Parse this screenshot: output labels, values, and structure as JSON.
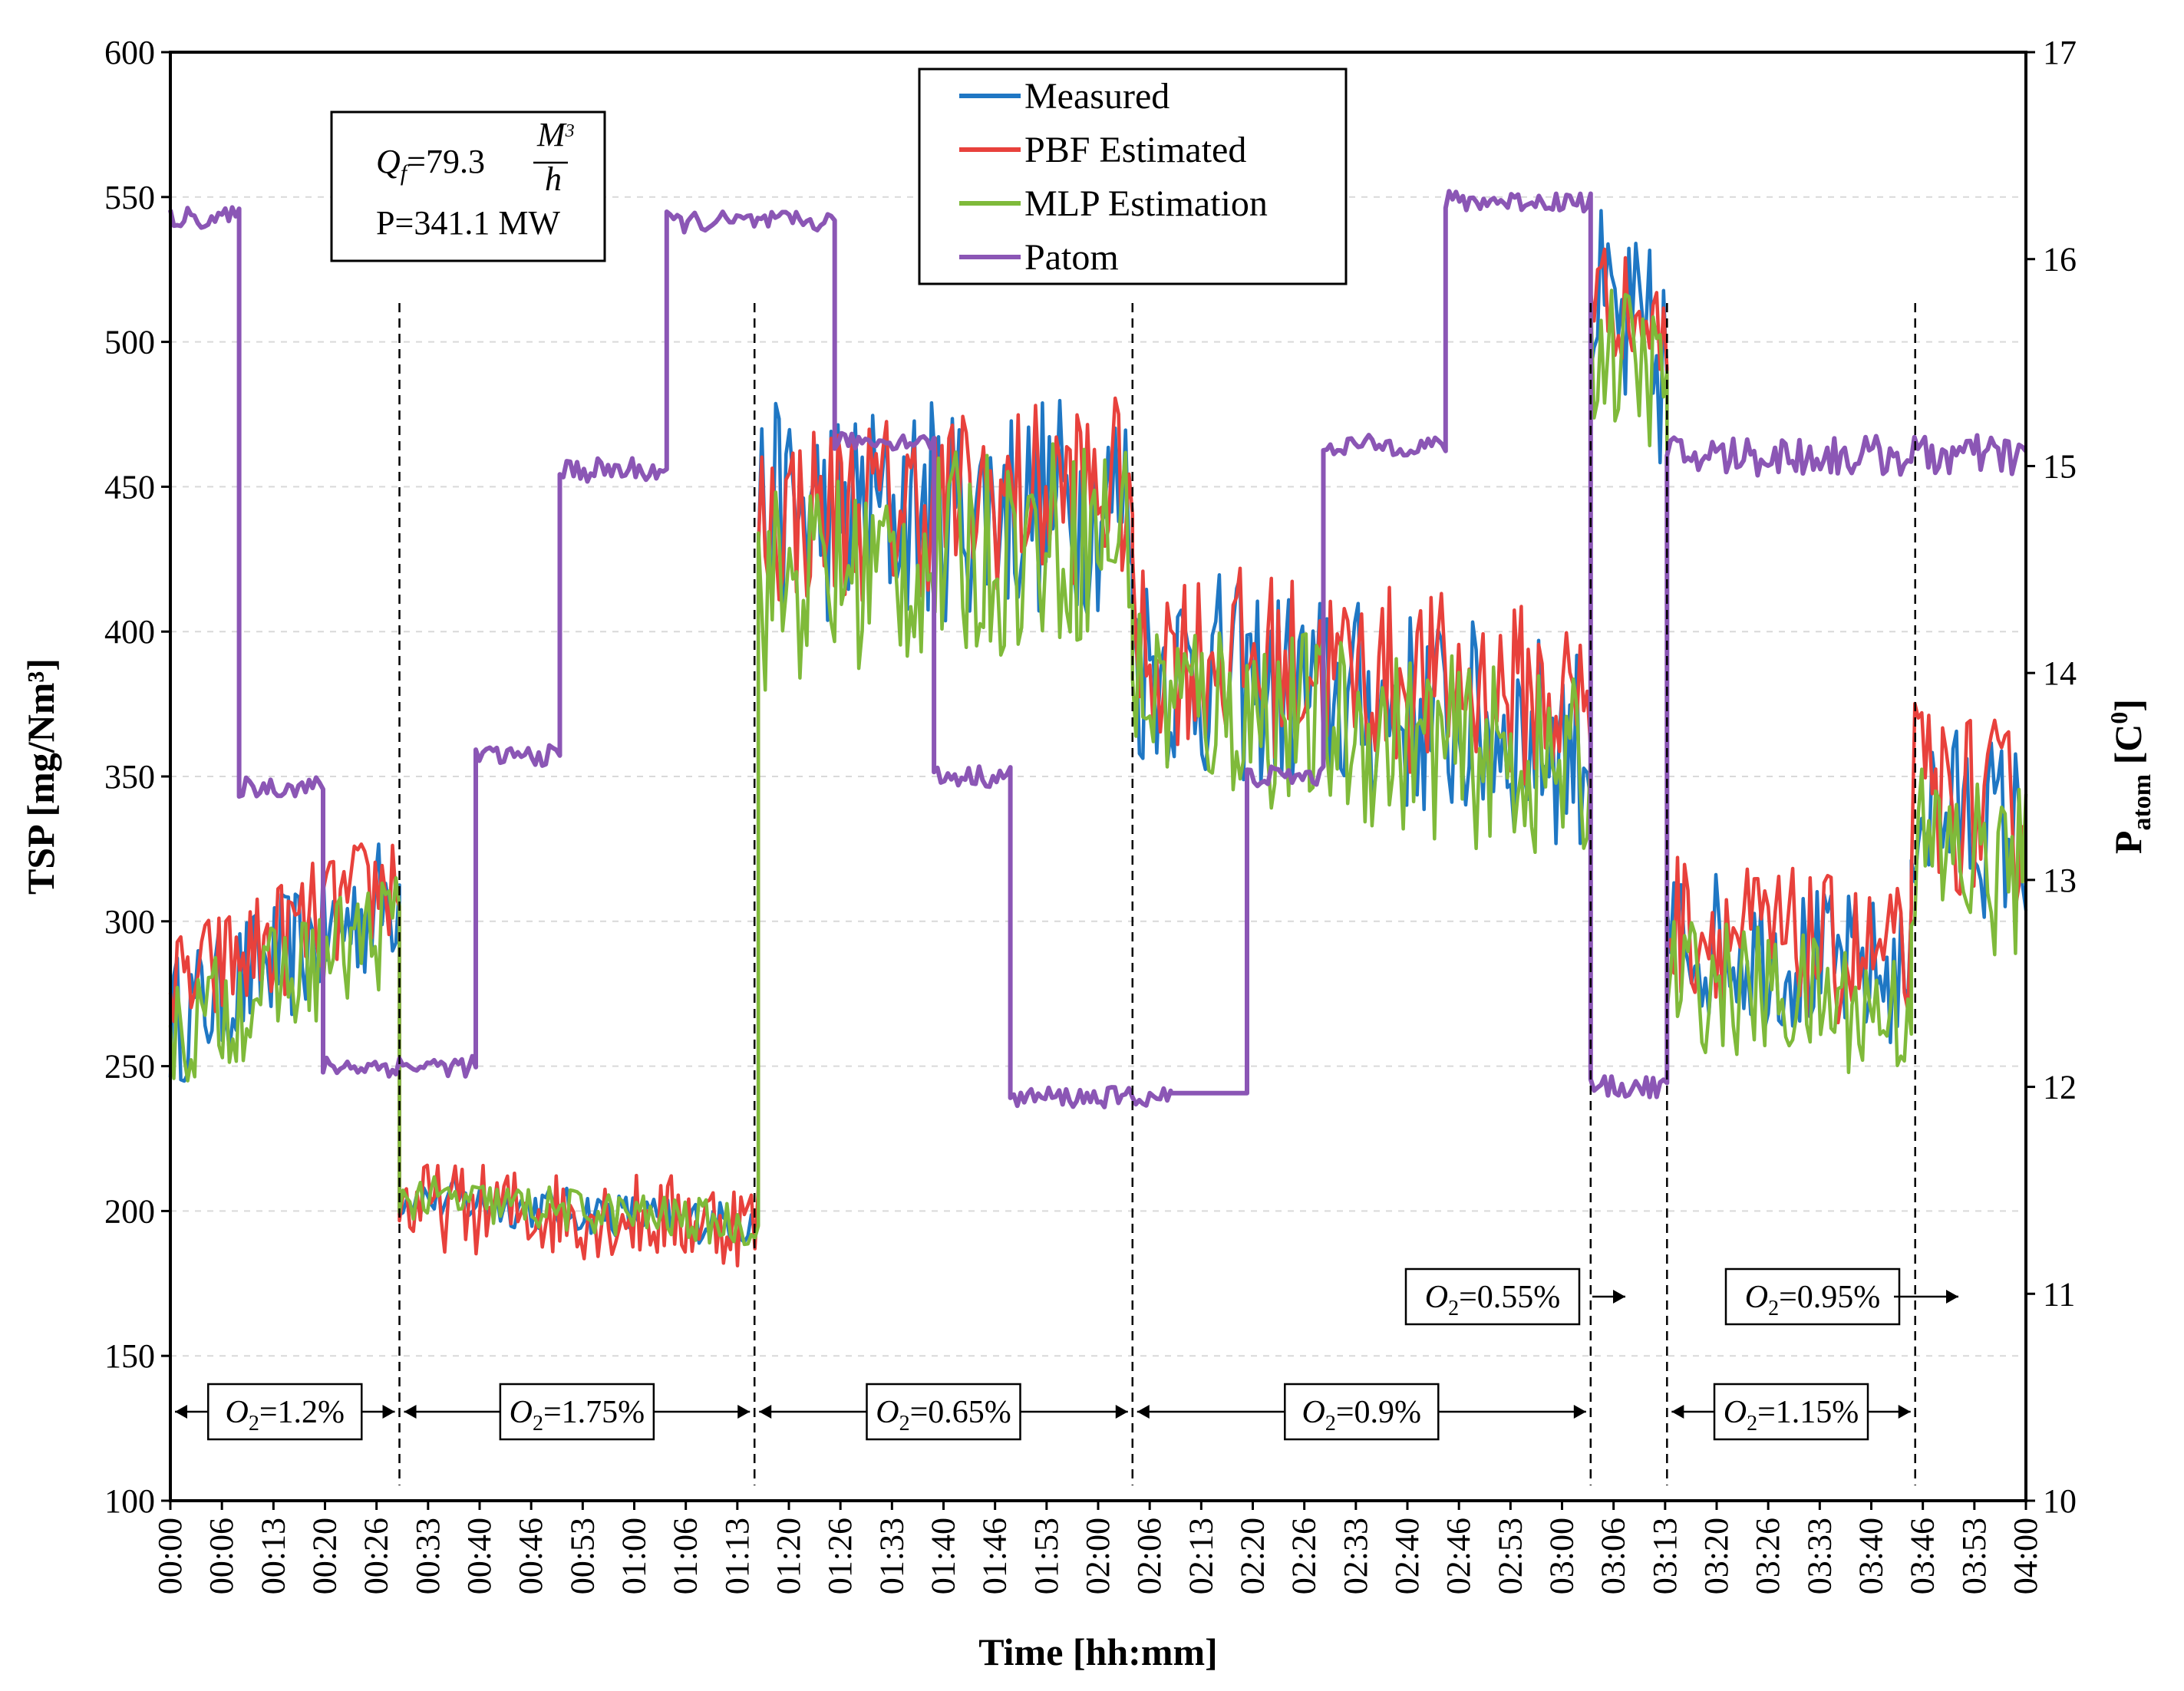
{
  "chart_data": {
    "type": "line",
    "xlabel": "Time [hh:mm]",
    "ylabel": "TSP [mg/Nm³]",
    "y2label_main": "P",
    "y2label_sub": "atom",
    "y2label_unit": " [C",
    "y2label_unit_sup": "0",
    "y2label_end": "]",
    "xlim": [
      0,
      243
    ],
    "ylim": [
      100,
      600
    ],
    "y2lim": [
      10,
      17
    ],
    "yticks": [
      100,
      150,
      200,
      250,
      300,
      350,
      400,
      450,
      500,
      550,
      600
    ],
    "y2ticks": [
      10,
      11,
      12,
      13,
      14,
      15,
      16,
      17
    ],
    "xtick_labels": [
      "00:00",
      "00:06",
      "00:13",
      "00:20",
      "00:26",
      "00:33",
      "00:40",
      "00:46",
      "00:53",
      "01:00",
      "01:06",
      "01:13",
      "01:20",
      "01:26",
      "01:33",
      "01:40",
      "01:46",
      "01:53",
      "02:00",
      "02:06",
      "02:13",
      "02:20",
      "02:26",
      "02:33",
      "02:40",
      "02:46",
      "02:53",
      "03:00",
      "03:06",
      "03:13",
      "03:20",
      "03:26",
      "03:33",
      "03:40",
      "03:46",
      "03:53",
      "04:00"
    ],
    "series": [
      {
        "name": "Measured",
        "color": "#1f77c4",
        "axis": "left",
        "segments": [
          {
            "x": [
              0,
              30
            ],
            "level": [
              265,
              310
            ],
            "noise": 18
          },
          {
            "x": [
              30,
              77
            ],
            "level": [
              205,
              195
            ],
            "noise": 6
          },
          {
            "x": [
              77,
              126
            ],
            "level": [
              440,
              445
            ],
            "noise": 30
          },
          {
            "x": [
              126,
              186
            ],
            "level": [
              390,
              360
            ],
            "noise": 28
          },
          {
            "x": [
              186,
              196
            ],
            "level": [
              510,
              490
            ],
            "noise": 30
          },
          {
            "x": [
              196,
              228
            ],
            "level": [
              295,
              280
            ],
            "noise": 20
          },
          {
            "x": [
              228,
              243
            ],
            "level": [
              340,
              330
            ],
            "noise": 25
          }
        ]
      },
      {
        "name": "PBF Estimated",
        "color": "#e8413c",
        "axis": "left",
        "segments": [
          {
            "x": [
              0,
              30
            ],
            "level": [
              275,
              315
            ],
            "noise": 16
          },
          {
            "x": [
              30,
              77
            ],
            "level": [
              202,
              196
            ],
            "noise": 12
          },
          {
            "x": [
              77,
              126
            ],
            "level": [
              440,
              450
            ],
            "noise": 25
          },
          {
            "x": [
              126,
              186
            ],
            "level": [
              395,
              375
            ],
            "noise": 25
          },
          {
            "x": [
              186,
              196
            ],
            "level": [
              520,
              500
            ],
            "noise": 15
          },
          {
            "x": [
              196,
              228
            ],
            "level": [
              300,
              285
            ],
            "noise": 20
          },
          {
            "x": [
              228,
              243
            ],
            "level": [
              345,
              335
            ],
            "noise": 25
          }
        ]
      },
      {
        "name": "MLP Estimation",
        "color": "#7fba3a",
        "axis": "left",
        "segments": [
          {
            "x": [
              0,
              30
            ],
            "level": [
              260,
              300
            ],
            "noise": 16
          },
          {
            "x": [
              30,
              77
            ],
            "level": [
              205,
              195
            ],
            "noise": 6
          },
          {
            "x": [
              77,
              126
            ],
            "level": [
              415,
              435
            ],
            "noise": 28
          },
          {
            "x": [
              126,
              186
            ],
            "level": [
              380,
              350
            ],
            "noise": 25
          },
          {
            "x": [
              186,
              196
            ],
            "level": [
              500,
              485
            ],
            "noise": 20
          },
          {
            "x": [
              196,
              228
            ],
            "level": [
              280,
              268
            ],
            "noise": 18
          },
          {
            "x": [
              228,
              243
            ],
            "level": [
              325,
              315
            ],
            "noise": 25
          }
        ]
      },
      {
        "name": "Patom",
        "color": "#8b56b5",
        "axis": "right",
        "steps": [
          {
            "x": [
              0,
              9
            ],
            "y": 16.2,
            "noise": 0.05
          },
          {
            "x": [
              9,
              20
            ],
            "y": 13.45,
            "noise": 0.05
          },
          {
            "x": [
              20,
              40
            ],
            "y": 12.1,
            "noise": 0.05
          },
          {
            "x": [
              40,
              51
            ],
            "y": 13.6,
            "noise": 0.05
          },
          {
            "x": [
              51,
              65
            ],
            "y": 14.98,
            "noise": 0.06
          },
          {
            "x": [
              65,
              87
            ],
            "y": 16.18,
            "noise": 0.05
          },
          {
            "x": [
              87,
              100
            ],
            "y": 15.12,
            "noise": 0.04
          },
          {
            "x": [
              100,
              110
            ],
            "y": 13.5,
            "noise": 0.05
          },
          {
            "x": [
              110,
              131
            ],
            "y": 11.95,
            "noise": 0.05
          },
          {
            "x": [
              131,
              141
            ],
            "y": 11.97,
            "noise": 0.0
          },
          {
            "x": [
              141,
              151
            ],
            "y": 13.5,
            "noise": 0.05
          },
          {
            "x": [
              151,
              167
            ],
            "y": 15.1,
            "noise": 0.05
          },
          {
            "x": [
              167,
              186
            ],
            "y": 16.28,
            "noise": 0.05
          },
          {
            "x": [
              186,
              196
            ],
            "y": 12.0,
            "noise": 0.05
          },
          {
            "x": [
              196,
              243
            ],
            "y": 15.05,
            "noise": 0.1
          }
        ]
      }
    ],
    "vlines": [
      30,
      76.5,
      126,
      186,
      196,
      228.5
    ],
    "o2_regions": [
      {
        "label_main": "O",
        "label_sub": "2",
        "label_rest": "=1.2%",
        "x_start": 0,
        "x_end": 30
      },
      {
        "label_main": "O",
        "label_sub": "2",
        "label_rest": "=1.75%",
        "x_start": 30,
        "x_end": 76.5
      },
      {
        "label_main": "O",
        "label_sub": "2",
        "label_rest": "=0.65%",
        "x_start": 76.5,
        "x_end": 126
      },
      {
        "label_main": "O",
        "label_sub": "2",
        "label_rest": "=0.9%",
        "x_start": 126,
        "x_end": 186
      },
      {
        "label_main": "O",
        "label_sub": "2",
        "label_rest": "=1.15%",
        "x_start": 196,
        "x_end": 228.5
      }
    ],
    "o2_arrows": [
      {
        "label_main": "O",
        "label_sub": "2",
        "label_rest": "=0.55%"
      },
      {
        "label_main": "O",
        "label_sub": "2",
        "label_rest": "=0.95%"
      }
    ],
    "annotation": {
      "line1_var": "Q",
      "line1_sub": "f",
      "line1_eq": "=79.3",
      "line1_num": "M",
      "line1_num_sup": "3",
      "line1_den": "h",
      "line2": "P=341.1 MW"
    },
    "legend": [
      "Measured",
      "PBF Estimated",
      "MLP Estimation",
      "Patom"
    ],
    "legend_position": "top-center"
  }
}
